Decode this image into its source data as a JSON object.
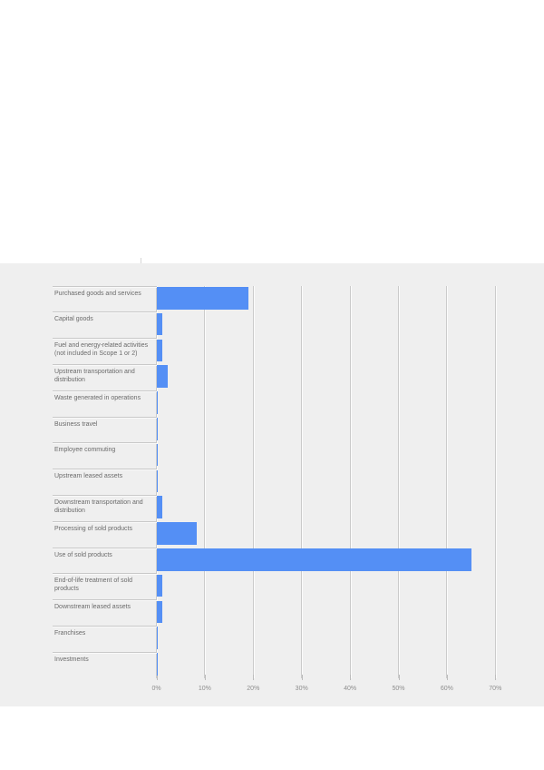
{
  "panel": {
    "background": "#efefef"
  },
  "chart_data": {
    "type": "bar",
    "orientation": "horizontal",
    "title": "",
    "xlabel": "",
    "ylabel": "",
    "unit": "%",
    "categories": [
      "Purchased goods and services",
      "Capital goods",
      "Fuel and energy-related activities (not included in Scope 1 or 2)",
      "Upstream transportation and distribution",
      "Waste generated in operations",
      "Business travel",
      "Employee commuting",
      "Upstream leased assets",
      "Downstream transportation and distribution",
      "Processing of sold products",
      "Use of sold products",
      "End-of-life treatment of sold products",
      "Downstream leased assets",
      "Franchises",
      "Investments"
    ],
    "values": [
      19,
      1.3,
      1.3,
      2.3,
      0.35,
      0.35,
      0.35,
      0.35,
      1.2,
      8.4,
      65,
      1.3,
      1.3,
      0.35,
      0.35
    ],
    "x_ticks": {
      "values": [
        0,
        10,
        20,
        30,
        40,
        50,
        60,
        70
      ],
      "labels": [
        "0%",
        "10%",
        "20%",
        "30%",
        "40%",
        "50%",
        "60%",
        "70%"
      ]
    },
    "xlim": [
      0,
      70
    ],
    "grid": true,
    "legend": "none",
    "bar_color": "#548ff5"
  }
}
